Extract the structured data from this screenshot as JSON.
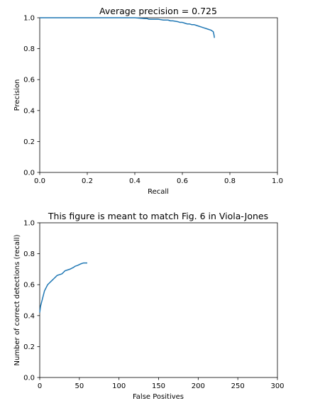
{
  "chart_data": [
    {
      "type": "line",
      "title": "Average precision = 0.725",
      "xlabel": "Recall",
      "ylabel": "Precision",
      "xlim": [
        0.0,
        1.0
      ],
      "ylim": [
        0.0,
        1.0
      ],
      "xticks": [
        "0.0",
        "0.2",
        "0.4",
        "0.6",
        "0.8",
        "1.0"
      ],
      "yticks": [
        "0.0",
        "0.2",
        "0.4",
        "0.6",
        "0.8",
        "1.0"
      ],
      "grid": false,
      "color": "#1f77b4",
      "series": [
        {
          "x": [
            0.0,
            0.25,
            0.4,
            0.44,
            0.45,
            0.46,
            0.5,
            0.52,
            0.54,
            0.55,
            0.56,
            0.58,
            0.59,
            0.6,
            0.61,
            0.62,
            0.63,
            0.64,
            0.65,
            0.66,
            0.67,
            0.68,
            0.69,
            0.7,
            0.71,
            0.72,
            0.73,
            0.733,
            0.735
          ],
          "y": [
            1.0,
            1.0,
            1.0,
            0.995,
            0.995,
            0.99,
            0.99,
            0.985,
            0.985,
            0.98,
            0.98,
            0.975,
            0.97,
            0.97,
            0.965,
            0.96,
            0.96,
            0.955,
            0.955,
            0.95,
            0.945,
            0.94,
            0.935,
            0.93,
            0.925,
            0.92,
            0.91,
            0.89,
            0.87
          ]
        }
      ]
    },
    {
      "type": "line",
      "title": "This figure is meant to match Fig. 6 in Viola-Jones",
      "xlabel": "False Positives",
      "ylabel": "Number of correct detections (recall)",
      "xlim": [
        0,
        300
      ],
      "ylim": [
        0.0,
        1.0
      ],
      "xticks": [
        "0",
        "50",
        "100",
        "150",
        "200",
        "250",
        "300"
      ],
      "yticks": [
        "0.0",
        "0.2",
        "0.4",
        "0.6",
        "0.8",
        "1.0"
      ],
      "grid": false,
      "color": "#1f77b4",
      "series": [
        {
          "x": [
            0,
            0.5,
            1,
            2,
            3,
            4,
            5,
            6,
            7,
            8,
            10,
            12,
            14,
            16,
            18,
            20,
            22,
            25,
            28,
            30,
            32,
            35,
            38,
            40,
            42,
            45,
            48,
            50,
            52,
            55,
            58,
            60
          ],
          "y": [
            0.42,
            0.44,
            0.46,
            0.48,
            0.5,
            0.52,
            0.54,
            0.56,
            0.57,
            0.58,
            0.6,
            0.61,
            0.62,
            0.63,
            0.64,
            0.65,
            0.66,
            0.665,
            0.67,
            0.68,
            0.69,
            0.695,
            0.7,
            0.705,
            0.71,
            0.72,
            0.725,
            0.73,
            0.735,
            0.74,
            0.74,
            0.74
          ]
        }
      ]
    }
  ]
}
